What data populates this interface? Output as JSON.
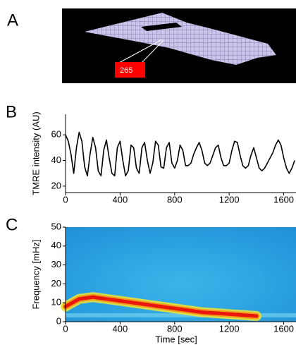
{
  "panel_a": {
    "label": "A",
    "annotation": "265"
  },
  "chart_data": [
    {
      "type": "line",
      "panel_label": "B",
      "ylabel": "TMRE intensity (AU)",
      "color": "#000000",
      "x": [
        0,
        20,
        40,
        60,
        80,
        100,
        120,
        140,
        160,
        180,
        200,
        220,
        240,
        260,
        280,
        300,
        320,
        340,
        360,
        380,
        400,
        420,
        440,
        460,
        480,
        500,
        520,
        540,
        560,
        580,
        600,
        620,
        640,
        660,
        680,
        700,
        720,
        740,
        760,
        780,
        800,
        820,
        840,
        860,
        880,
        900,
        920,
        940,
        960,
        980,
        1000,
        1020,
        1040,
        1060,
        1080,
        1100,
        1120,
        1140,
        1160,
        1180,
        1200,
        1220,
        1240,
        1260,
        1280,
        1300,
        1320,
        1340,
        1360,
        1380,
        1400,
        1420,
        1440,
        1460,
        1480,
        1500,
        1520,
        1540,
        1560,
        1580,
        1600,
        1620,
        1640,
        1660,
        1680
      ],
      "values": [
        60,
        55,
        45,
        30,
        50,
        62,
        55,
        35,
        28,
        45,
        58,
        50,
        32,
        28,
        48,
        56,
        42,
        30,
        28,
        50,
        55,
        40,
        28,
        32,
        52,
        50,
        34,
        30,
        50,
        54,
        40,
        30,
        38,
        55,
        52,
        35,
        34,
        50,
        54,
        38,
        34,
        40,
        52,
        48,
        36,
        36,
        38,
        45,
        50,
        54,
        48,
        38,
        36,
        38,
        44,
        50,
        52,
        42,
        36,
        36,
        38,
        48,
        55,
        54,
        44,
        36,
        34,
        36,
        44,
        50,
        42,
        34,
        32,
        34,
        38,
        42,
        46,
        52,
        56,
        52,
        42,
        34,
        30,
        34,
        40
      ],
      "xlim": [
        0,
        1690
      ],
      "ylim": [
        15,
        76
      ],
      "xticks": [
        0,
        400,
        800,
        1200,
        1600
      ],
      "yticks": [
        20,
        40,
        60
      ]
    },
    {
      "type": "ridge",
      "panel_label": "C",
      "ylabel": "Frequency [mHz]",
      "xlabel": "Time [sec]",
      "background": "#2ba3e0",
      "color": "#e8160c",
      "x": [
        0,
        100,
        200,
        300,
        400,
        500,
        600,
        700,
        800,
        900,
        1000,
        1100,
        1200,
        1300,
        1400
      ],
      "values": [
        8,
        12,
        13,
        12,
        11,
        10,
        9,
        8,
        7,
        6,
        5,
        4.5,
        4,
        3.5,
        3
      ],
      "xlim": [
        0,
        1690
      ],
      "ylim": [
        0,
        50
      ],
      "xticks": [
        0,
        400,
        800,
        1200,
        1600
      ],
      "yticks": [
        0,
        10,
        20,
        30,
        40,
        50
      ]
    }
  ]
}
